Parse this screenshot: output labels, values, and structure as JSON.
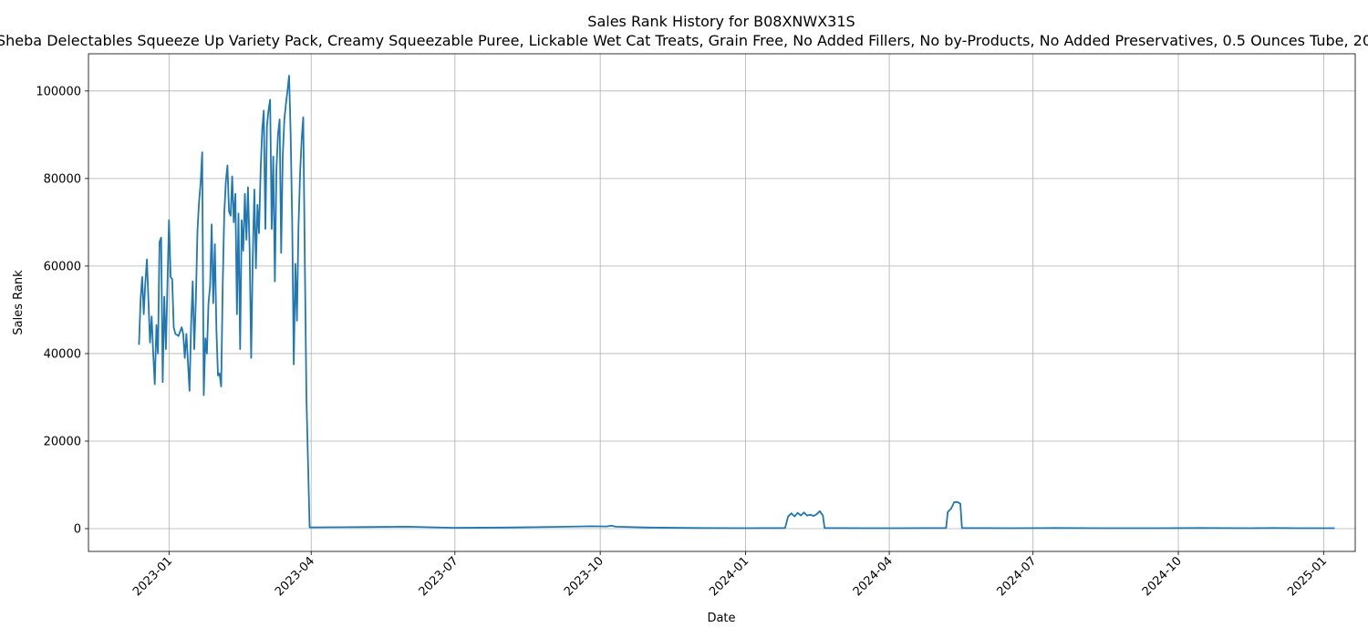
{
  "chart_data": {
    "type": "line",
    "title": "Sales Rank History for B08XNWX31S",
    "subtitle": "Sheba Delectables Squeeze Up Variety Pack, Creamy Squeezable Puree, Lickable Wet Cat Treats, Grain Free, No Added Fillers, No by-Products, No Added Preservatives, 0.5 Ounces Tube, 20",
    "xlabel": "Date",
    "ylabel": "Sales Rank",
    "xlim": [
      "2022-11-11",
      "2025-01-21"
    ],
    "ylim": [
      -5200,
      108500
    ],
    "x_ticks": [
      "2023-01-01",
      "2023-04-01",
      "2023-07-01",
      "2023-10-01",
      "2024-01-01",
      "2024-04-01",
      "2024-07-01",
      "2024-10-01",
      "2025-01-01"
    ],
    "x_tick_labels": [
      "2023-01",
      "2023-04",
      "2023-07",
      "2023-10",
      "2024-01",
      "2024-04",
      "2024-07",
      "2024-10",
      "2025-01"
    ],
    "y_ticks": [
      0,
      20000,
      40000,
      60000,
      80000,
      100000
    ],
    "y_tick_labels": [
      "0",
      "20000",
      "40000",
      "60000",
      "80000",
      "100000"
    ],
    "grid": true,
    "series": [
      {
        "color": "#1f77b4",
        "points": [
          [
            "2022-12-13",
            42000
          ],
          [
            "2022-12-14",
            52500
          ],
          [
            "2022-12-15",
            57500
          ],
          [
            "2022-12-16",
            49000
          ],
          [
            "2022-12-17",
            56000
          ],
          [
            "2022-12-18",
            61500
          ],
          [
            "2022-12-19",
            52000
          ],
          [
            "2022-12-20",
            42500
          ],
          [
            "2022-12-21",
            48500
          ],
          [
            "2022-12-22",
            40000
          ],
          [
            "2022-12-23",
            33000
          ],
          [
            "2022-12-24",
            46500
          ],
          [
            "2022-12-25",
            40000
          ],
          [
            "2022-12-26",
            65500
          ],
          [
            "2022-12-27",
            66500
          ],
          [
            "2022-12-28",
            33500
          ],
          [
            "2022-12-29",
            53000
          ],
          [
            "2022-12-30",
            41000
          ],
          [
            "2023-01-01",
            70500
          ],
          [
            "2023-01-02",
            57500
          ],
          [
            "2023-01-03",
            57000
          ],
          [
            "2023-01-04",
            46000
          ],
          [
            "2023-01-05",
            44500
          ],
          [
            "2023-01-07",
            44000
          ],
          [
            "2023-01-09",
            46000
          ],
          [
            "2023-01-10",
            44500
          ],
          [
            "2023-01-11",
            39000
          ],
          [
            "2023-01-12",
            44500
          ],
          [
            "2023-01-14",
            31500
          ],
          [
            "2023-01-15",
            47000
          ],
          [
            "2023-01-16",
            56500
          ],
          [
            "2023-01-17",
            41000
          ],
          [
            "2023-01-18",
            52500
          ],
          [
            "2023-01-19",
            68000
          ],
          [
            "2023-01-20",
            74500
          ],
          [
            "2023-01-21",
            79000
          ],
          [
            "2023-01-22",
            86000
          ],
          [
            "2023-01-23",
            30500
          ],
          [
            "2023-01-24",
            43500
          ],
          [
            "2023-01-25",
            40000
          ],
          [
            "2023-01-26",
            51500
          ],
          [
            "2023-01-27",
            55500
          ],
          [
            "2023-01-28",
            69500
          ],
          [
            "2023-01-29",
            51500
          ],
          [
            "2023-01-30",
            65000
          ],
          [
            "2023-01-31",
            45500
          ],
          [
            "2023-02-01",
            35000
          ],
          [
            "2023-02-02",
            35500
          ],
          [
            "2023-02-03",
            32500
          ],
          [
            "2023-02-04",
            55500
          ],
          [
            "2023-02-05",
            72000
          ],
          [
            "2023-02-06",
            79500
          ],
          [
            "2023-02-07",
            83000
          ],
          [
            "2023-02-08",
            72500
          ],
          [
            "2023-02-09",
            71500
          ],
          [
            "2023-02-10",
            80500
          ],
          [
            "2023-02-11",
            70000
          ],
          [
            "2023-02-12",
            76500
          ],
          [
            "2023-02-13",
            49000
          ],
          [
            "2023-02-14",
            72000
          ],
          [
            "2023-02-15",
            41000
          ],
          [
            "2023-02-16",
            70500
          ],
          [
            "2023-02-17",
            63500
          ],
          [
            "2023-02-18",
            76500
          ],
          [
            "2023-02-19",
            66000
          ],
          [
            "2023-02-20",
            78000
          ],
          [
            "2023-02-21",
            64000
          ],
          [
            "2023-02-22",
            39000
          ],
          [
            "2023-02-23",
            61500
          ],
          [
            "2023-02-24",
            77500
          ],
          [
            "2023-02-25",
            59500
          ],
          [
            "2023-02-26",
            74000
          ],
          [
            "2023-02-27",
            67500
          ],
          [
            "2023-02-28",
            82000
          ],
          [
            "2023-03-01",
            91000
          ],
          [
            "2023-03-02",
            95500
          ],
          [
            "2023-03-03",
            68500
          ],
          [
            "2023-03-04",
            92000
          ],
          [
            "2023-03-05",
            95500
          ],
          [
            "2023-03-06",
            98000
          ],
          [
            "2023-03-07",
            68500
          ],
          [
            "2023-03-08",
            85000
          ],
          [
            "2023-03-09",
            56500
          ],
          [
            "2023-03-10",
            82000
          ],
          [
            "2023-03-11",
            90000
          ],
          [
            "2023-03-12",
            93500
          ],
          [
            "2023-03-13",
            63000
          ],
          [
            "2023-03-14",
            85000
          ],
          [
            "2023-03-15",
            93500
          ],
          [
            "2023-03-16",
            97000
          ],
          [
            "2023-03-17",
            100000
          ],
          [
            "2023-03-18",
            103500
          ],
          [
            "2023-03-19",
            90000
          ],
          [
            "2023-03-20",
            70000
          ],
          [
            "2023-03-21",
            37500
          ],
          [
            "2023-03-22",
            60500
          ],
          [
            "2023-03-23",
            47500
          ],
          [
            "2023-03-24",
            69000
          ],
          [
            "2023-03-25",
            81500
          ],
          [
            "2023-03-26",
            89000
          ],
          [
            "2023-03-27",
            94000
          ],
          [
            "2023-03-28",
            60000
          ],
          [
            "2023-03-29",
            30000
          ],
          [
            "2023-03-31",
            300
          ],
          [
            "2023-05-01",
            350
          ],
          [
            "2023-06-01",
            450
          ],
          [
            "2023-07-01",
            200
          ],
          [
            "2023-08-01",
            250
          ],
          [
            "2023-09-01",
            400
          ],
          [
            "2023-09-25",
            550
          ],
          [
            "2023-10-05",
            500
          ],
          [
            "2023-10-08",
            700
          ],
          [
            "2023-10-11",
            450
          ],
          [
            "2023-11-01",
            250
          ],
          [
            "2023-12-01",
            150
          ],
          [
            "2024-01-01",
            100
          ],
          [
            "2024-01-26",
            150
          ],
          [
            "2024-01-28",
            2800
          ],
          [
            "2024-01-30",
            3500
          ],
          [
            "2024-02-01",
            2800
          ],
          [
            "2024-02-03",
            3600
          ],
          [
            "2024-02-05",
            3000
          ],
          [
            "2024-02-07",
            3700
          ],
          [
            "2024-02-09",
            3000
          ],
          [
            "2024-02-11",
            3200
          ],
          [
            "2024-02-13",
            2900
          ],
          [
            "2024-02-15",
            3300
          ],
          [
            "2024-02-17",
            4000
          ],
          [
            "2024-02-19",
            3000
          ],
          [
            "2024-02-20",
            150
          ],
          [
            "2024-03-15",
            100
          ],
          [
            "2024-04-10",
            100
          ],
          [
            "2024-05-07",
            150
          ],
          [
            "2024-05-08",
            3800
          ],
          [
            "2024-05-10",
            4500
          ],
          [
            "2024-05-11",
            5200
          ],
          [
            "2024-05-12",
            6000
          ],
          [
            "2024-05-14",
            6100
          ],
          [
            "2024-05-16",
            5700
          ],
          [
            "2024-05-17",
            150
          ],
          [
            "2024-06-15",
            100
          ],
          [
            "2024-07-15",
            150
          ],
          [
            "2024-08-15",
            100
          ],
          [
            "2024-09-15",
            100
          ],
          [
            "2024-10-15",
            150
          ],
          [
            "2024-11-15",
            100
          ],
          [
            "2024-12-01",
            150
          ],
          [
            "2024-12-15",
            100
          ],
          [
            "2025-01-01",
            100
          ],
          [
            "2025-01-08",
            100
          ]
        ]
      }
    ]
  }
}
